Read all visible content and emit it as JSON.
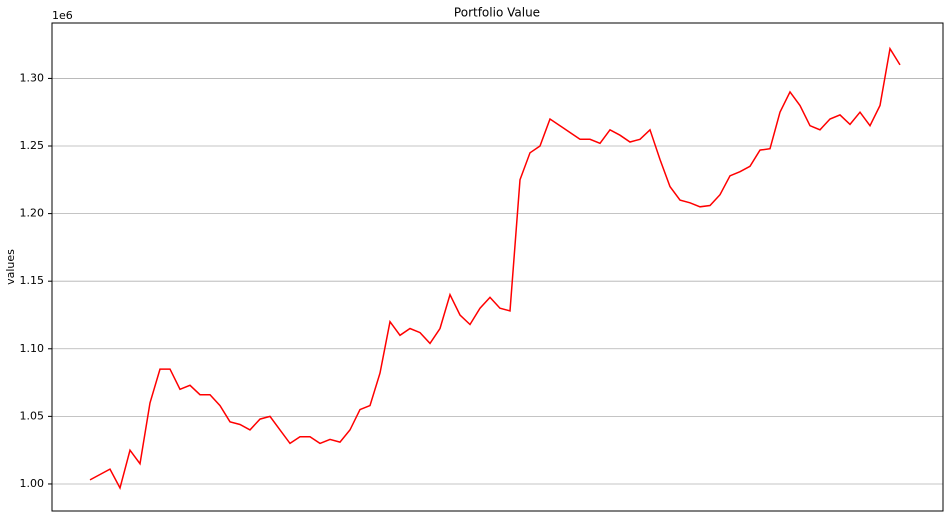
{
  "chart_data": {
    "type": "line",
    "title": "Portfolio Value",
    "y_label": "values",
    "offset_label": "1e6",
    "series": [
      {
        "name": "values",
        "color": "#ff0000",
        "values": [
          1.003,
          1.007,
          1.011,
          0.997,
          1.025,
          1.015,
          1.06,
          1.085,
          1.085,
          1.07,
          1.073,
          1.066,
          1.066,
          1.058,
          1.046,
          1.044,
          1.04,
          1.048,
          1.05,
          1.04,
          1.03,
          1.035,
          1.035,
          1.03,
          1.033,
          1.031,
          1.04,
          1.055,
          1.058,
          1.082,
          1.12,
          1.11,
          1.115,
          1.112,
          1.104,
          1.115,
          1.14,
          1.125,
          1.118,
          1.13,
          1.138,
          1.13,
          1.128,
          1.225,
          1.245,
          1.25,
          1.27,
          1.265,
          1.26,
          1.255,
          1.255,
          1.252,
          1.262,
          1.258,
          1.253,
          1.255,
          1.262,
          1.24,
          1.22,
          1.21,
          1.208,
          1.205,
          1.206,
          1.214,
          1.228,
          1.231,
          1.235,
          1.247,
          1.248,
          1.275,
          1.29,
          1.28,
          1.265,
          1.262,
          1.27,
          1.273,
          1.266,
          1.275,
          1.265,
          1.28,
          1.322,
          1.31
        ]
      }
    ],
    "ylim": [
      0.98,
      1.341
    ],
    "yticks": [
      {
        "value": 1.0,
        "label": "1.00"
      },
      {
        "value": 1.05,
        "label": "1.05"
      },
      {
        "value": 1.1,
        "label": "1.10"
      },
      {
        "value": 1.15,
        "label": "1.15"
      },
      {
        "value": 1.2,
        "label": "1.20"
      },
      {
        "value": 1.25,
        "label": "1.25"
      },
      {
        "value": 1.3,
        "label": "1.30"
      }
    ],
    "grid": true
  }
}
